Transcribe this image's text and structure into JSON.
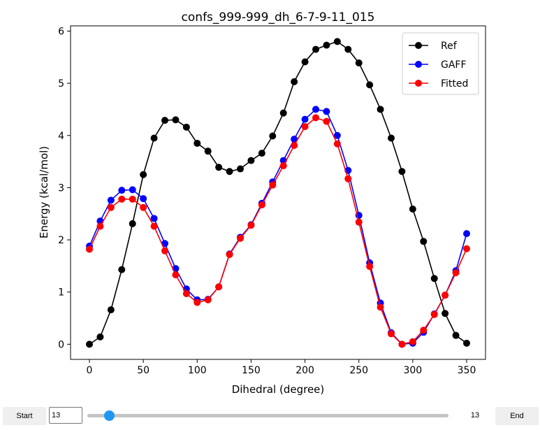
{
  "chart_data": {
    "type": "line",
    "title": "confs_999-999_dh_6-7-9-11_015",
    "xlabel": "Dihedral (degree)",
    "ylabel": "Energy (kcal/mol)",
    "xlim": [
      -17.5,
      367.5
    ],
    "ylim": [
      -0.29,
      6.1
    ],
    "xticks": [
      0,
      50,
      100,
      150,
      200,
      250,
      300,
      350
    ],
    "yticks": [
      0,
      1,
      2,
      3,
      4,
      5,
      6
    ],
    "grid": false,
    "legend_position": "top-right",
    "x": [
      0,
      10,
      20,
      30,
      40,
      50,
      60,
      70,
      80,
      90,
      100,
      110,
      120,
      130,
      140,
      150,
      160,
      170,
      180,
      190,
      200,
      210,
      220,
      230,
      240,
      250,
      260,
      270,
      280,
      290,
      300,
      310,
      320,
      330,
      340,
      350
    ],
    "series": [
      {
        "name": "Ref",
        "color": "#000000",
        "values": [
          0.0,
          0.14,
          0.66,
          1.43,
          2.31,
          3.25,
          3.95,
          4.29,
          4.3,
          4.16,
          3.85,
          3.7,
          3.39,
          3.31,
          3.36,
          3.52,
          3.66,
          3.99,
          4.43,
          5.03,
          5.41,
          5.65,
          5.73,
          5.8,
          5.65,
          5.39,
          4.97,
          4.5,
          3.95,
          3.31,
          2.59,
          1.97,
          1.26,
          0.59,
          0.17,
          0.02
        ]
      },
      {
        "name": "GAFF",
        "color": "#0000ff",
        "values": [
          1.88,
          2.36,
          2.76,
          2.95,
          2.96,
          2.79,
          2.41,
          1.93,
          1.45,
          1.06,
          0.85,
          0.86,
          1.1,
          1.73,
          2.05,
          2.29,
          2.7,
          3.11,
          3.52,
          3.93,
          4.31,
          4.5,
          4.46,
          4.0,
          3.33,
          2.47,
          1.56,
          0.79,
          0.22,
          0.0,
          0.02,
          0.23,
          0.58,
          0.94,
          1.41,
          2.12
        ]
      },
      {
        "name": "Fitted",
        "color": "#ff0000",
        "values": [
          1.82,
          2.26,
          2.62,
          2.78,
          2.78,
          2.62,
          2.26,
          1.79,
          1.33,
          0.97,
          0.8,
          0.85,
          1.1,
          1.72,
          2.03,
          2.28,
          2.67,
          3.05,
          3.42,
          3.81,
          4.17,
          4.34,
          4.27,
          3.84,
          3.17,
          2.34,
          1.49,
          0.71,
          0.2,
          0.0,
          0.05,
          0.27,
          0.57,
          0.94,
          1.37,
          1.83
        ]
      }
    ]
  },
  "controls": {
    "start_label": "Start",
    "end_label": "End",
    "frame_value": "13",
    "slider_readout": "13",
    "slider_accent": "#2196f3"
  }
}
